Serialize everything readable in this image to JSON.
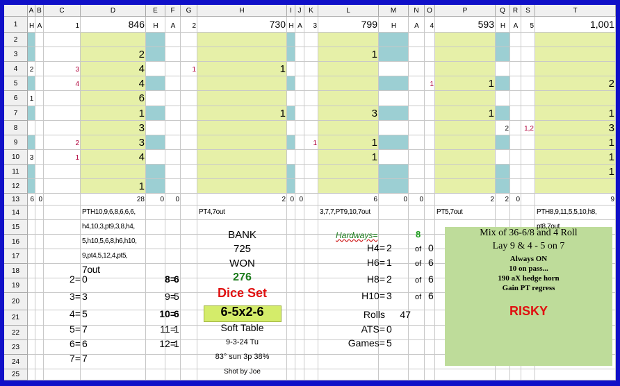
{
  "columns": [
    "A",
    "B",
    "C",
    "D",
    "E",
    "F",
    "G",
    "H",
    "I",
    "J",
    "K",
    "L",
    "M",
    "N",
    "O",
    "P",
    "Q",
    "R",
    "S",
    "T"
  ],
  "rows": [
    "1",
    "2",
    "3",
    "4",
    "5",
    "6",
    "7",
    "8",
    "9",
    "10",
    "11",
    "12",
    "13",
    "14",
    "15",
    "16",
    "17",
    "18",
    "19",
    "20",
    "21",
    "22",
    "23",
    "24",
    "25"
  ],
  "row1": {
    "a": "H",
    "b": "A",
    "c": "1",
    "d": "846",
    "e": "H",
    "f": "A",
    "g": "2",
    "h": "730",
    "i": "H",
    "j": "A",
    "k": "3",
    "l": "799",
    "m": "H",
    "n": "A",
    "o": "4",
    "p": "593",
    "q": "H",
    "r": "A",
    "s": "5",
    "t": "1,001"
  },
  "grid": {
    "a4": "2",
    "c4": "3",
    "d3": "2",
    "d4": "4",
    "g4": "1",
    "h4": "1",
    "l3": "1",
    "c5": "4",
    "d5": "4",
    "o5": "1",
    "p5": "1",
    "t5": "2",
    "a6": "1",
    "d6": "6",
    "d7": "1",
    "h7": "1",
    "l7": "3",
    "p7": "1",
    "t7": "1",
    "d8": "3",
    "q8": "2",
    "s8": "1,2",
    "t8": "3",
    "c9": "2",
    "d9": "3",
    "k9": "1",
    "l9": "1",
    "t9": "1",
    "a10": "3",
    "c10": "1",
    "d10": "4",
    "l10": "1",
    "t10": "1",
    "t11": "1",
    "d12": "1"
  },
  "row13": {
    "a": "6",
    "b": "0",
    "d": "28",
    "e": "0",
    "f": "0",
    "h": "2",
    "i": "0",
    "j": "0",
    "l": "6",
    "m": "0",
    "n": "0",
    "p": "2",
    "q": "2",
    "r": "0",
    "t": "9"
  },
  "notes": {
    "d14": "PTH10,9,6,8,6,6,6,",
    "d15": "h4,10,3,pt9,3,8,h4,",
    "d16": "5,h10,5,6,8,h6,h10,",
    "d17": "9,pt4,5,12,4,pt5,",
    "d18": "7out",
    "h14": "PT4,7out",
    "l14": "3,7,7,PT9,10,7out",
    "p14": "PT5,7out",
    "t14": "PTH8,9,11,5,5,10,h8,",
    "t15": "pt8,7out"
  },
  "totals": [
    {
      "label": "2=",
      "value": "0"
    },
    {
      "label": "3=",
      "value": "3"
    },
    {
      "label": "4=",
      "value": "5"
    },
    {
      "label": "5=",
      "value": "7"
    },
    {
      "label": "6=",
      "value": "6"
    },
    {
      "label": "7=",
      "value": "7"
    }
  ],
  "totals2": [
    {
      "label": "8=",
      "value": "6",
      "bold": true
    },
    {
      "label": "9=",
      "value": "5",
      "bold": false
    },
    {
      "label": "10=",
      "value": "6",
      "bold": true
    },
    {
      "label": "11=",
      "value": "1",
      "bold": false
    },
    {
      "label": "12=",
      "value": "1",
      "bold": false
    }
  ],
  "center": {
    "bank": "BANK",
    "bank_value": "725",
    "won": "WON",
    "won_value": "276",
    "dice_set": "Dice Set",
    "dice_set_value": "6-5x2-6",
    "table": "Soft Table",
    "date": "9-3-24 Tu",
    "weather": "83° sun 3p 38%",
    "shot_by": "Shot by Joe"
  },
  "hardways": {
    "title": "Hardways=",
    "count": "8",
    "rows": [
      {
        "label": "H4=",
        "value": "2",
        "of": "of",
        "total": "0"
      },
      {
        "label": "H6=",
        "value": "1",
        "of": "of",
        "total": "6"
      },
      {
        "label": "H8=",
        "value": "2",
        "of": "of",
        "total": "6"
      },
      {
        "label": "H10=",
        "value": "3",
        "of": "of",
        "total": "6"
      }
    ],
    "rolls_label": "Rolls",
    "rolls": "47",
    "ats_label": "ATS=",
    "ats": "0",
    "games_label": "Games=",
    "games": "5"
  },
  "strategy": {
    "line1": "Mix of 36-6/8 and 4 Roll",
    "line2": "Lay 9 & 4 - 5 on 7",
    "line3": "Always ON",
    "line4": "10 on pass...",
    "line5": "190 aX hedge horn",
    "line6": "Gain PT regress",
    "risk": "RISKY"
  },
  "colors": {
    "frame": "#1010c8",
    "blue_fill": "#9ccfd3",
    "yellow_fill": "#e6f0a8",
    "green_fill": "#bedc9a",
    "won_green": "#1a7a1a",
    "dice_red": "#e01010",
    "mark_red": "#b0003a"
  }
}
